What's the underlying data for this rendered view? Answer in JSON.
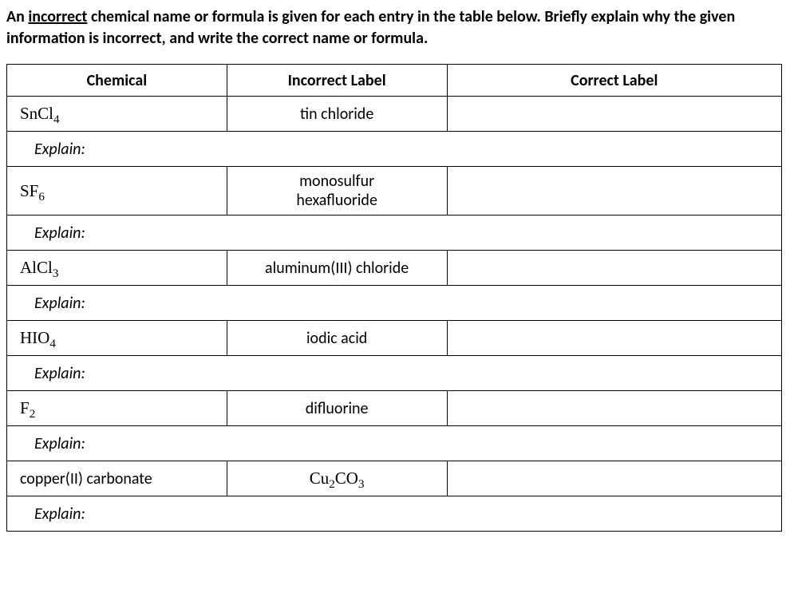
{
  "instruction": {
    "prefix": "An ",
    "underlined": "incorrect",
    "rest": " chemical name or formula is given for each entry in the table below. Briefly explain why the given information is incorrect, and write the correct name or formula."
  },
  "headers": {
    "chemical": "Chemical",
    "incorrect": "Incorrect Label",
    "correct": "Correct Label"
  },
  "explain_label": "Explain:",
  "rows": [
    {
      "chemical_html": "SnCl<sub>4</sub>",
      "incorrect_html": "tin chloride",
      "chemical_is_formula": true
    },
    {
      "chemical_html": "SF<sub>6</sub>",
      "incorrect_html": "monosulfur<br>hexafluoride",
      "chemical_is_formula": true
    },
    {
      "chemical_html": "AlCl<sub>3</sub>",
      "incorrect_html": "aluminum(III) chloride",
      "chemical_is_formula": true
    },
    {
      "chemical_html": "HIO<sub>4</sub>",
      "incorrect_html": "iodic acid",
      "chemical_is_formula": true
    },
    {
      "chemical_html": "F<sub>2</sub>",
      "incorrect_html": "difluorine",
      "chemical_is_formula": true
    },
    {
      "chemical_html": "copper(II) carbonate",
      "incorrect_html": "<span class=\"formula\">Cu<sub>2</sub>CO<sub>3</sub></span>",
      "chemical_is_formula": false
    }
  ]
}
